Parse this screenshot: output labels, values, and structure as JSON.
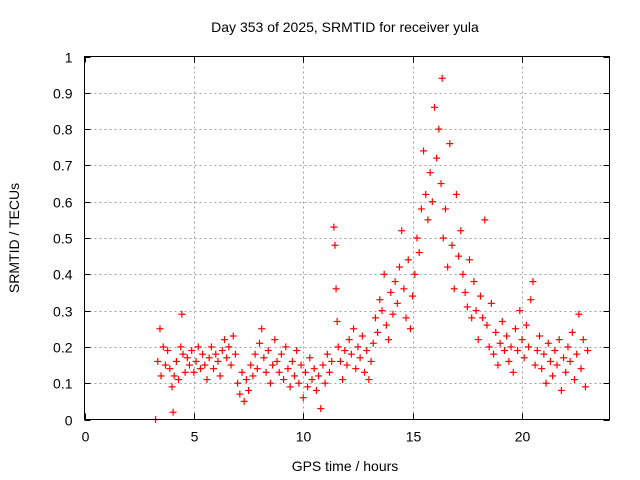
{
  "chart_data": {
    "type": "scatter",
    "title": "Day 353 of 2025, SRMTID for receiver yula",
    "xlabel": "GPS time / hours",
    "ylabel": "SRMTID / TECUs",
    "xlim": [
      0,
      24
    ],
    "ylim": [
      0,
      1
    ],
    "xticks": [
      0,
      5,
      10,
      15,
      20
    ],
    "xtick_labels": [
      "0",
      "5",
      "10",
      "15",
      "20"
    ],
    "yticks": [
      0,
      0.1,
      0.2,
      0.3,
      0.4,
      0.5,
      0.6,
      0.7,
      0.8,
      0.9,
      1
    ],
    "ytick_labels": [
      "0",
      "0.1",
      "0.2",
      "0.3",
      "0.4",
      "0.5",
      "0.6",
      "0.7",
      "0.8",
      "0.9",
      "1"
    ],
    "grid": true,
    "marker": "+",
    "color": "#ff0000",
    "series": [
      {
        "name": "SRMTID",
        "points": [
          [
            3.25,
            0.0
          ],
          [
            3.35,
            0.16
          ],
          [
            3.45,
            0.25
          ],
          [
            3.5,
            0.12
          ],
          [
            3.6,
            0.2
          ],
          [
            3.7,
            0.15
          ],
          [
            3.8,
            0.19
          ],
          [
            3.9,
            0.14
          ],
          [
            4.0,
            0.09
          ],
          [
            4.05,
            0.02
          ],
          [
            4.1,
            0.12
          ],
          [
            4.2,
            0.16
          ],
          [
            4.3,
            0.11
          ],
          [
            4.4,
            0.2
          ],
          [
            4.45,
            0.29
          ],
          [
            4.5,
            0.18
          ],
          [
            4.6,
            0.13
          ],
          [
            4.7,
            0.17
          ],
          [
            4.8,
            0.15
          ],
          [
            4.9,
            0.19
          ],
          [
            5.0,
            0.13
          ],
          [
            5.1,
            0.16
          ],
          [
            5.2,
            0.2
          ],
          [
            5.3,
            0.14
          ],
          [
            5.4,
            0.18
          ],
          [
            5.5,
            0.15
          ],
          [
            5.6,
            0.11
          ],
          [
            5.7,
            0.17
          ],
          [
            5.8,
            0.2
          ],
          [
            5.9,
            0.14
          ],
          [
            6.0,
            0.18
          ],
          [
            6.1,
            0.16
          ],
          [
            6.2,
            0.12
          ],
          [
            6.3,
            0.19
          ],
          [
            6.4,
            0.22
          ],
          [
            6.5,
            0.17
          ],
          [
            6.6,
            0.2
          ],
          [
            6.7,
            0.15
          ],
          [
            6.8,
            0.23
          ],
          [
            6.9,
            0.18
          ],
          [
            7.0,
            0.1
          ],
          [
            7.1,
            0.07
          ],
          [
            7.2,
            0.13
          ],
          [
            7.3,
            0.05
          ],
          [
            7.4,
            0.11
          ],
          [
            7.5,
            0.08
          ],
          [
            7.6,
            0.15
          ],
          [
            7.7,
            0.12
          ],
          [
            7.8,
            0.18
          ],
          [
            7.9,
            0.14
          ],
          [
            8.0,
            0.21
          ],
          [
            8.1,
            0.25
          ],
          [
            8.2,
            0.17
          ],
          [
            8.3,
            0.13
          ],
          [
            8.4,
            0.19
          ],
          [
            8.5,
            0.1
          ],
          [
            8.6,
            0.15
          ],
          [
            8.7,
            0.22
          ],
          [
            8.8,
            0.16
          ],
          [
            8.9,
            0.13
          ],
          [
            9.0,
            0.18
          ],
          [
            9.1,
            0.11
          ],
          [
            9.2,
            0.2
          ],
          [
            9.3,
            0.14
          ],
          [
            9.4,
            0.09
          ],
          [
            9.5,
            0.16
          ],
          [
            9.6,
            0.12
          ],
          [
            9.7,
            0.19
          ],
          [
            9.8,
            0.1
          ],
          [
            9.9,
            0.15
          ],
          [
            10.0,
            0.06
          ],
          [
            10.1,
            0.13
          ],
          [
            10.2,
            0.09
          ],
          [
            10.3,
            0.17
          ],
          [
            10.4,
            0.11
          ],
          [
            10.5,
            0.14
          ],
          [
            10.6,
            0.08
          ],
          [
            10.7,
            0.12
          ],
          [
            10.8,
            0.03
          ],
          [
            10.9,
            0.15
          ],
          [
            11.0,
            0.1
          ],
          [
            11.1,
            0.18
          ],
          [
            11.2,
            0.13
          ],
          [
            11.3,
            0.16
          ],
          [
            11.4,
            0.53
          ],
          [
            11.45,
            0.48
          ],
          [
            11.5,
            0.36
          ],
          [
            11.55,
            0.27
          ],
          [
            11.6,
            0.2
          ],
          [
            11.7,
            0.16
          ],
          [
            11.8,
            0.11
          ],
          [
            11.9,
            0.19
          ],
          [
            12.0,
            0.15
          ],
          [
            12.1,
            0.22
          ],
          [
            12.2,
            0.18
          ],
          [
            12.3,
            0.25
          ],
          [
            12.4,
            0.14
          ],
          [
            12.5,
            0.2
          ],
          [
            12.6,
            0.17
          ],
          [
            12.7,
            0.23
          ],
          [
            12.8,
            0.13
          ],
          [
            12.9,
            0.19
          ],
          [
            13.0,
            0.11
          ],
          [
            13.1,
            0.16
          ],
          [
            13.2,
            0.21
          ],
          [
            13.3,
            0.28
          ],
          [
            13.4,
            0.24
          ],
          [
            13.5,
            0.33
          ],
          [
            13.6,
            0.3
          ],
          [
            13.7,
            0.4
          ],
          [
            13.8,
            0.26
          ],
          [
            13.9,
            0.22
          ],
          [
            14.0,
            0.35
          ],
          [
            14.1,
            0.29
          ],
          [
            14.2,
            0.38
          ],
          [
            14.3,
            0.32
          ],
          [
            14.4,
            0.42
          ],
          [
            14.5,
            0.52
          ],
          [
            14.6,
            0.36
          ],
          [
            14.7,
            0.28
          ],
          [
            14.8,
            0.44
          ],
          [
            14.9,
            0.25
          ],
          [
            15.0,
            0.34
          ],
          [
            15.1,
            0.4
          ],
          [
            15.2,
            0.5
          ],
          [
            15.3,
            0.46
          ],
          [
            15.4,
            0.58
          ],
          [
            15.5,
            0.74
          ],
          [
            15.6,
            0.62
          ],
          [
            15.7,
            0.55
          ],
          [
            15.8,
            0.68
          ],
          [
            15.9,
            0.6
          ],
          [
            16.0,
            0.86
          ],
          [
            16.1,
            0.72
          ],
          [
            16.2,
            0.8
          ],
          [
            16.3,
            0.65
          ],
          [
            16.35,
            0.94
          ],
          [
            16.4,
            0.5
          ],
          [
            16.5,
            0.58
          ],
          [
            16.6,
            0.42
          ],
          [
            16.7,
            0.76
          ],
          [
            16.8,
            0.48
          ],
          [
            16.9,
            0.36
          ],
          [
            17.0,
            0.62
          ],
          [
            17.1,
            0.45
          ],
          [
            17.2,
            0.52
          ],
          [
            17.3,
            0.4
          ],
          [
            17.4,
            0.35
          ],
          [
            17.5,
            0.31
          ],
          [
            17.6,
            0.44
          ],
          [
            17.7,
            0.28
          ],
          [
            17.8,
            0.38
          ],
          [
            17.9,
            0.3
          ],
          [
            18.0,
            0.22
          ],
          [
            18.1,
            0.34
          ],
          [
            18.2,
            0.28
          ],
          [
            18.3,
            0.55
          ],
          [
            18.4,
            0.26
          ],
          [
            18.5,
            0.2
          ],
          [
            18.6,
            0.32
          ],
          [
            18.7,
            0.18
          ],
          [
            18.8,
            0.24
          ],
          [
            18.9,
            0.15
          ],
          [
            19.0,
            0.21
          ],
          [
            19.1,
            0.27
          ],
          [
            19.2,
            0.19
          ],
          [
            19.3,
            0.23
          ],
          [
            19.4,
            0.16
          ],
          [
            19.5,
            0.2
          ],
          [
            19.6,
            0.13
          ],
          [
            19.7,
            0.25
          ],
          [
            19.8,
            0.19
          ],
          [
            19.9,
            0.3
          ],
          [
            20.0,
            0.22
          ],
          [
            20.1,
            0.17
          ],
          [
            20.2,
            0.26
          ],
          [
            20.3,
            0.2
          ],
          [
            20.4,
            0.33
          ],
          [
            20.5,
            0.38
          ],
          [
            20.6,
            0.15
          ],
          [
            20.7,
            0.19
          ],
          [
            20.8,
            0.23
          ],
          [
            20.9,
            0.14
          ],
          [
            21.0,
            0.18
          ],
          [
            21.1,
            0.1
          ],
          [
            21.2,
            0.21
          ],
          [
            21.3,
            0.16
          ],
          [
            21.4,
            0.12
          ],
          [
            21.5,
            0.19
          ],
          [
            21.6,
            0.15
          ],
          [
            21.7,
            0.22
          ],
          [
            21.8,
            0.08
          ],
          [
            21.9,
            0.17
          ],
          [
            22.0,
            0.13
          ],
          [
            22.1,
            0.2
          ],
          [
            22.2,
            0.16
          ],
          [
            22.3,
            0.24
          ],
          [
            22.4,
            0.11
          ],
          [
            22.5,
            0.18
          ],
          [
            22.6,
            0.29
          ],
          [
            22.7,
            0.14
          ],
          [
            22.8,
            0.22
          ],
          [
            22.9,
            0.09
          ],
          [
            23.0,
            0.19
          ]
        ]
      }
    ]
  }
}
